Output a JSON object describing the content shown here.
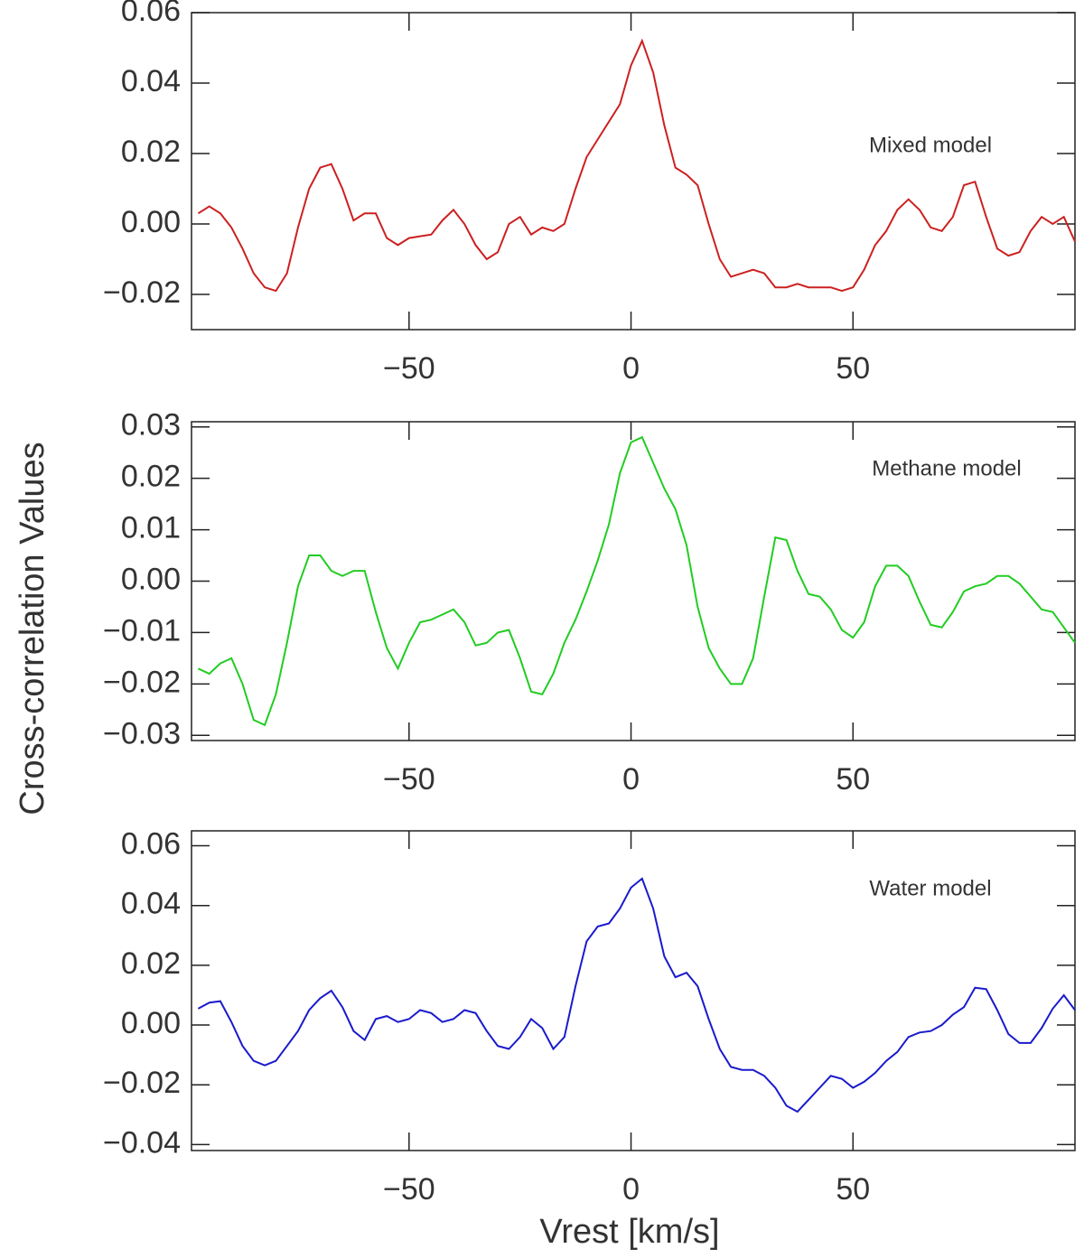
{
  "chart_data": [
    {
      "type": "line",
      "annotation": "Mixed model",
      "color": "#cc2020",
      "x": [
        -97.5,
        -95,
        -92.5,
        -90,
        -87.5,
        -85,
        -82.5,
        -80,
        -77.5,
        -75,
        -72.5,
        -70,
        -67.5,
        -65,
        -62.5,
        -60,
        -57.5,
        -55,
        -52.5,
        -50,
        -47.5,
        -45,
        -42.5,
        -40,
        -37.5,
        -35,
        -32.5,
        -30,
        -27.5,
        -25,
        -22.5,
        -20,
        -17.5,
        -15,
        -12.5,
        -10,
        -7.5,
        -5,
        -2.5,
        0,
        2.5,
        5,
        7.5,
        10,
        12.5,
        15,
        17.5,
        20,
        22.5,
        25,
        27.5,
        30,
        32.5,
        35,
        37.5,
        40,
        42.5,
        45,
        47.5,
        50,
        52.5,
        55,
        57.5,
        60,
        62.5,
        65,
        67.5,
        70,
        72.5,
        75,
        77.5,
        80,
        82.5,
        85,
        87.5,
        90,
        92.5,
        95,
        97.5,
        100
      ],
      "values": [
        0.003,
        0.005,
        0.003,
        -0.001,
        -0.007,
        -0.014,
        -0.018,
        -0.019,
        -0.014,
        -0.001,
        0.01,
        0.016,
        0.017,
        0.01,
        0.001,
        0.003,
        0.003,
        -0.004,
        -0.006,
        -0.004,
        -0.0035,
        -0.003,
        0.001,
        0.004,
        0.0,
        -0.006,
        -0.01,
        -0.008,
        0.0,
        0.002,
        -0.003,
        -0.001,
        -0.002,
        0.0,
        0.01,
        0.019,
        0.024,
        0.029,
        0.034,
        0.045,
        0.052,
        0.043,
        0.028,
        0.016,
        0.014,
        0.011,
        0.0,
        -0.01,
        -0.015,
        -0.014,
        -0.013,
        -0.014,
        -0.018,
        -0.018,
        -0.017,
        -0.018,
        -0.018,
        -0.018,
        -0.019,
        -0.018,
        -0.013,
        -0.006,
        -0.002,
        0.004,
        0.007,
        0.004,
        -0.001,
        -0.002,
        0.002,
        0.011,
        0.012,
        0.002,
        -0.007,
        -0.009,
        -0.008,
        -0.002,
        0.002,
        0.0,
        0.002,
        -0.005
      ],
      "xlim": [
        -99,
        100
      ],
      "xticks": [
        {
          "value": -50,
          "label": "−50"
        },
        0,
        50
      ],
      "ylim": [
        -0.03,
        0.06
      ],
      "yticks": [
        {
          "value": -0.02,
          "label": "−0.02"
        },
        {
          "value": 0,
          "label": "0.00"
        },
        0.02,
        0.04,
        0.06
      ]
    },
    {
      "type": "line",
      "annotation": "Methane model",
      "color": "#22cc22",
      "ylabel": "Cross-correlation Values",
      "x": [
        -97.5,
        -95,
        -92.5,
        -90,
        -87.5,
        -85,
        -82.5,
        -80,
        -77.5,
        -75,
        -72.5,
        -70,
        -67.5,
        -65,
        -62.5,
        -60,
        -57.5,
        -55,
        -52.5,
        -50,
        -47.5,
        -45,
        -42.5,
        -40,
        -37.5,
        -35,
        -32.5,
        -30,
        -27.5,
        -25,
        -22.5,
        -20,
        -17.5,
        -15,
        -12.5,
        -10,
        -7.5,
        -5,
        -2.5,
        0,
        2.5,
        5,
        7.5,
        10,
        12.5,
        15,
        17.5,
        20,
        22.5,
        25,
        27.5,
        30,
        32.5,
        35,
        37.5,
        40,
        42.5,
        45,
        47.5,
        50,
        52.5,
        55,
        57.5,
        60,
        62.5,
        65,
        67.5,
        70,
        72.5,
        75,
        77.5,
        80,
        82.5,
        85,
        87.5,
        90,
        92.5,
        95,
        97.5,
        100
      ],
      "values": [
        -0.017,
        -0.018,
        -0.016,
        -0.015,
        -0.02,
        -0.027,
        -0.028,
        -0.022,
        -0.012,
        -0.001,
        0.005,
        0.005,
        0.002,
        0.001,
        0.002,
        0.002,
        -0.006,
        -0.013,
        -0.017,
        -0.012,
        -0.008,
        -0.0075,
        -0.0065,
        -0.0055,
        -0.008,
        -0.0125,
        -0.012,
        -0.01,
        -0.0095,
        -0.015,
        -0.0215,
        -0.022,
        -0.018,
        -0.012,
        -0.0075,
        -0.002,
        0.004,
        0.011,
        0.021,
        0.027,
        0.028,
        0.023,
        0.018,
        0.014,
        0.007,
        -0.005,
        -0.013,
        -0.017,
        -0.02,
        -0.02,
        -0.015,
        -0.003,
        0.0085,
        0.008,
        0.002,
        -0.0025,
        -0.003,
        -0.0055,
        -0.0095,
        -0.011,
        -0.008,
        -0.001,
        0.003,
        0.003,
        0.001,
        -0.004,
        -0.0085,
        -0.009,
        -0.006,
        -0.002,
        -0.001,
        -0.0005,
        0.001,
        0.001,
        -0.0005,
        -0.003,
        -0.0055,
        -0.006,
        -0.009,
        -0.012
      ],
      "xlim": [
        -99,
        100
      ],
      "xticks": [
        {
          "value": -50,
          "label": "−50"
        },
        0,
        50
      ],
      "ylim": [
        -0.031,
        0.031
      ],
      "yticks": [
        {
          "value": -0.03,
          "label": "−0.03"
        },
        {
          "value": -0.02,
          "label": "−0.02"
        },
        {
          "value": -0.01,
          "label": "−0.01"
        },
        {
          "value": 0,
          "label": "0.00"
        },
        0.01,
        0.02,
        0.03
      ]
    },
    {
      "type": "line",
      "annotation": "Water model",
      "color": "#1a1acc",
      "xlabel": "Vrest [km/s]",
      "x": [
        -97.5,
        -95,
        -92.5,
        -90,
        -87.5,
        -85,
        -82.5,
        -80,
        -77.5,
        -75,
        -72.5,
        -70,
        -67.5,
        -65,
        -62.5,
        -60,
        -57.5,
        -55,
        -52.5,
        -50,
        -47.5,
        -45,
        -42.5,
        -40,
        -37.5,
        -35,
        -32.5,
        -30,
        -27.5,
        -25,
        -22.5,
        -20,
        -17.5,
        -15,
        -12.5,
        -10,
        -7.5,
        -5,
        -2.5,
        0,
        2.5,
        5,
        7.5,
        10,
        12.5,
        15,
        17.5,
        20,
        22.5,
        25,
        27.5,
        30,
        32.5,
        35,
        37.5,
        40,
        42.5,
        45,
        47.5,
        50,
        52.5,
        55,
        57.5,
        60,
        62.5,
        65,
        67.5,
        70,
        72.5,
        75,
        77.5,
        80,
        82.5,
        85,
        87.5,
        90,
        92.5,
        95,
        97.5,
        100
      ],
      "values": [
        0.0055,
        0.0075,
        0.008,
        0.001,
        -0.007,
        -0.012,
        -0.0135,
        -0.012,
        -0.007,
        -0.002,
        0.005,
        0.009,
        0.0115,
        0.006,
        -0.002,
        -0.005,
        0.002,
        0.003,
        0.001,
        0.002,
        0.005,
        0.004,
        0.001,
        0.002,
        0.005,
        0.004,
        -0.002,
        -0.007,
        -0.008,
        -0.004,
        0.002,
        -0.001,
        -0.008,
        -0.004,
        0.013,
        0.028,
        0.033,
        0.034,
        0.039,
        0.046,
        0.049,
        0.039,
        0.023,
        0.016,
        0.0175,
        0.013,
        0.002,
        -0.008,
        -0.014,
        -0.015,
        -0.015,
        -0.017,
        -0.021,
        -0.027,
        -0.029,
        -0.025,
        -0.021,
        -0.017,
        -0.018,
        -0.021,
        -0.019,
        -0.016,
        -0.012,
        -0.009,
        -0.004,
        -0.0025,
        -0.002,
        0.0,
        0.0035,
        0.006,
        0.0125,
        0.012,
        0.005,
        -0.003,
        -0.006,
        -0.006,
        -0.001,
        0.0055,
        0.01,
        0.005
      ],
      "xlim": [
        -99,
        100
      ],
      "xticks": [
        {
          "value": -50,
          "label": "−50"
        },
        0,
        50
      ],
      "ylim": [
        -0.042,
        0.065
      ],
      "yticks": [
        {
          "value": -0.04,
          "label": "−0.04"
        },
        {
          "value": -0.02,
          "label": "−0.02"
        },
        {
          "value": 0,
          "label": "0.00"
        },
        0.02,
        0.04,
        0.06
      ]
    }
  ]
}
